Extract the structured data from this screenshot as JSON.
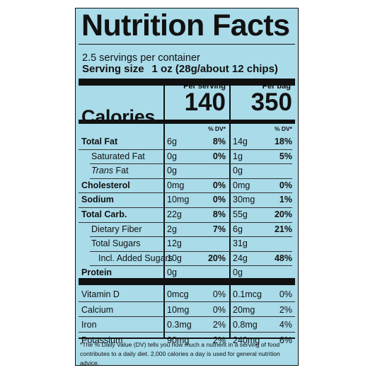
{
  "title": "Nutrition Facts",
  "servings": "2.5 servings per container",
  "serving_size": {
    "label": "Serving size",
    "value": "1 oz (28g/about 12 chips)"
  },
  "columns": {
    "per_serving": "Per serving",
    "per_bag": "Per bag"
  },
  "calories": {
    "label": "Calories",
    "per_serving": "140",
    "per_bag": "350"
  },
  "dv_header": "% DV*",
  "rows": [
    {
      "name": "Total Fat",
      "s_amt": "6g",
      "s_dv": "8%",
      "b_amt": "14g",
      "b_dv": "18%"
    },
    {
      "name": "Saturated Fat",
      "s_amt": "0g",
      "s_dv": "0%",
      "b_amt": "1g",
      "b_dv": "5%"
    },
    {
      "name_italic": "Trans",
      "name": " Fat",
      "s_amt": "0g",
      "b_amt": "0g"
    },
    {
      "name": "Cholesterol",
      "s_amt": "0mg",
      "s_dv": "0%",
      "b_amt": "0mg",
      "b_dv": "0%"
    },
    {
      "name": "Sodium",
      "s_amt": "10mg",
      "s_dv": "0%",
      "b_amt": "30mg",
      "b_dv": "1%"
    },
    {
      "name": "Total Carb.",
      "s_amt": "22g",
      "s_dv": "8%",
      "b_amt": "55g",
      "b_dv": "20%"
    },
    {
      "name": "Dietary Fiber",
      "s_amt": "2g",
      "s_dv": "7%",
      "b_amt": "6g",
      "b_dv": "21%"
    },
    {
      "name": "Total Sugars",
      "s_amt": "12g",
      "b_amt": "31g"
    },
    {
      "name": "Incl. Added Sugars",
      "s_amt": "10g",
      "s_dv": "20%",
      "b_amt": "24g",
      "b_dv": "48%"
    },
    {
      "name": "Protein",
      "s_amt": "0g",
      "b_amt": "0g"
    }
  ],
  "vitamins": [
    {
      "name": "Vitamin D",
      "s_amt": "0mcg",
      "s_dv": "0%",
      "b_amt": "0.1mcg",
      "b_dv": "0%"
    },
    {
      "name": "Calcium",
      "s_amt": "10mg",
      "s_dv": "0%",
      "b_amt": "20mg",
      "b_dv": "2%"
    },
    {
      "name": "Iron",
      "s_amt": "0.3mg",
      "s_dv": "2%",
      "b_amt": "0.8mg",
      "b_dv": "4%"
    },
    {
      "name": "Potassium",
      "s_amt": "90mg",
      "s_dv": "2%",
      "b_amt": "240mg",
      "b_dv": "6%"
    }
  ],
  "footnote": "*The % Daily Value (DV) tells you how much a nutrient in a serving of food contributes to a daily diet. 2,000 calories a day is used for general nutrition advice.",
  "colors": {
    "panel_background": "#a9dbe9",
    "text": "#111111"
  }
}
